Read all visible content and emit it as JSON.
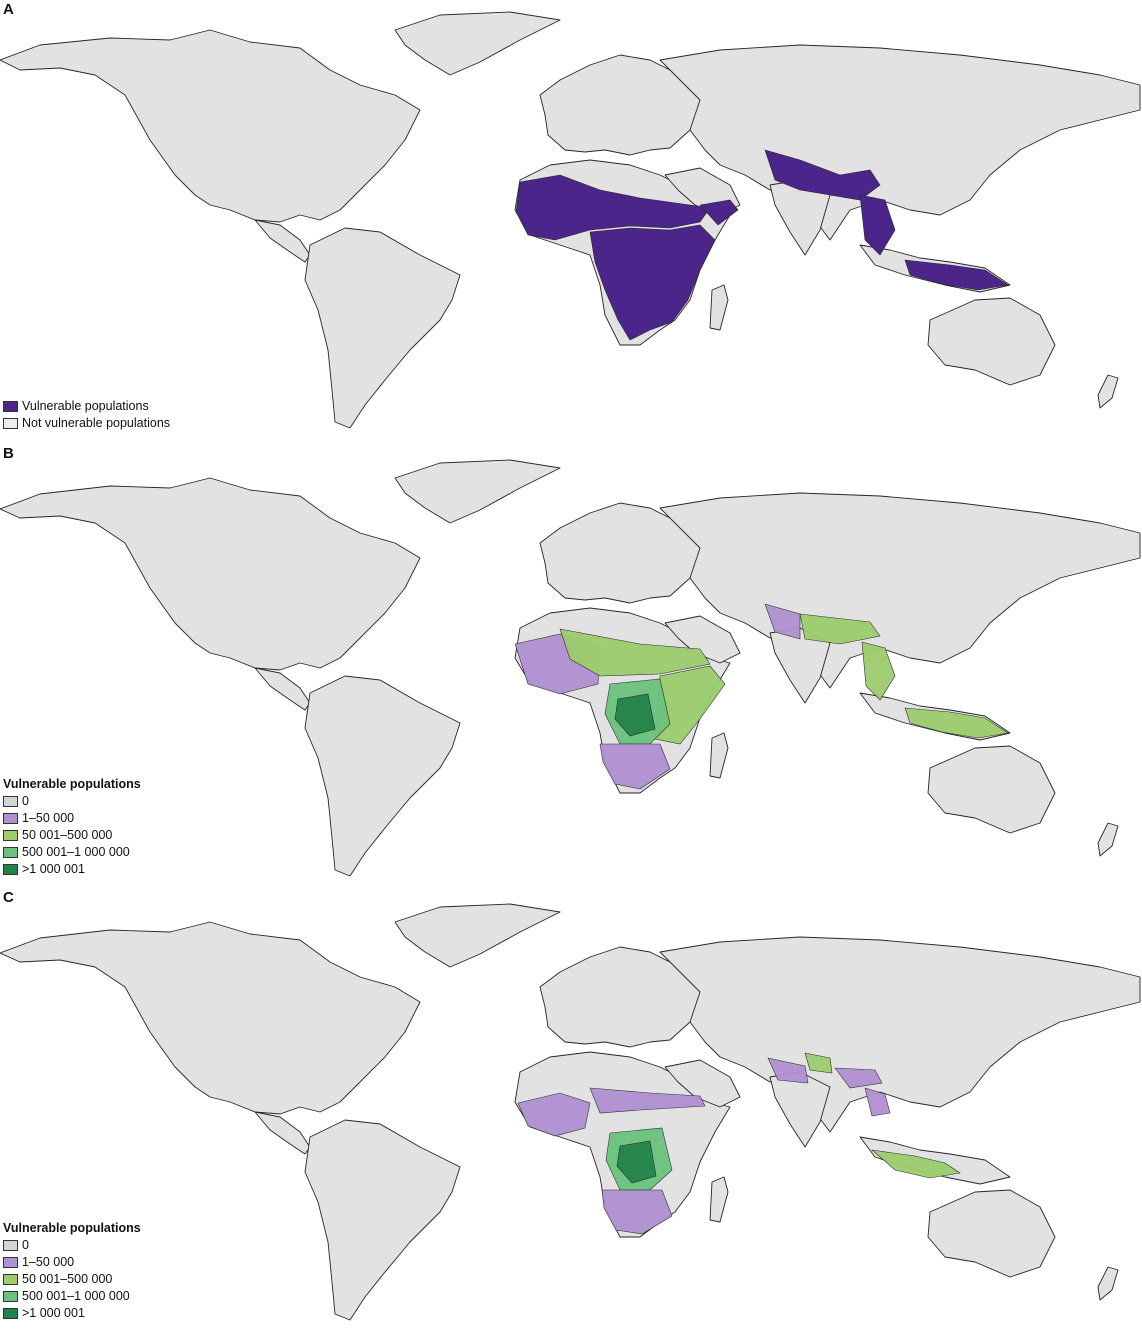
{
  "colors": {
    "land": "#e2e2e2",
    "border": "#262626",
    "vulnerable": "#4b2589",
    "not_vulnerable": "#ececec",
    "zero": "#d4d4d4",
    "c1": "#b090d2",
    "c2": "#9ccc6e",
    "c3": "#6cc27c",
    "c4": "#22834a"
  },
  "panels": [
    {
      "letter": "A",
      "legend": {
        "title": "",
        "items": [
          {
            "label": "Vulnerable populations",
            "color": "#4b2589"
          },
          {
            "label": "Not vulnerable populations",
            "color": "#ececec"
          }
        ]
      }
    },
    {
      "letter": "B",
      "legend": {
        "title": "Vulnerable populations",
        "items": [
          {
            "label": "0",
            "color": "#d4d4d4"
          },
          {
            "label": "1–50 000",
            "color": "#b090d2"
          },
          {
            "label": "50 001–500 000",
            "color": "#9ccc6e"
          },
          {
            "label": "500 001–1 000 000",
            "color": "#6cc27c"
          },
          {
            "label": ">1 000 001",
            "color": "#22834a"
          }
        ]
      }
    },
    {
      "letter": "C",
      "legend": {
        "title": "Vulnerable populations",
        "items": [
          {
            "label": "0",
            "color": "#d4d4d4"
          },
          {
            "label": "1–50 000",
            "color": "#b090d2"
          },
          {
            "label": "50 001–500 000",
            "color": "#9ccc6e"
          },
          {
            "label": "500 001–1 000 000",
            "color": "#6cc27c"
          },
          {
            "label": ">1 000 001",
            "color": "#22834a"
          }
        ]
      }
    }
  ]
}
